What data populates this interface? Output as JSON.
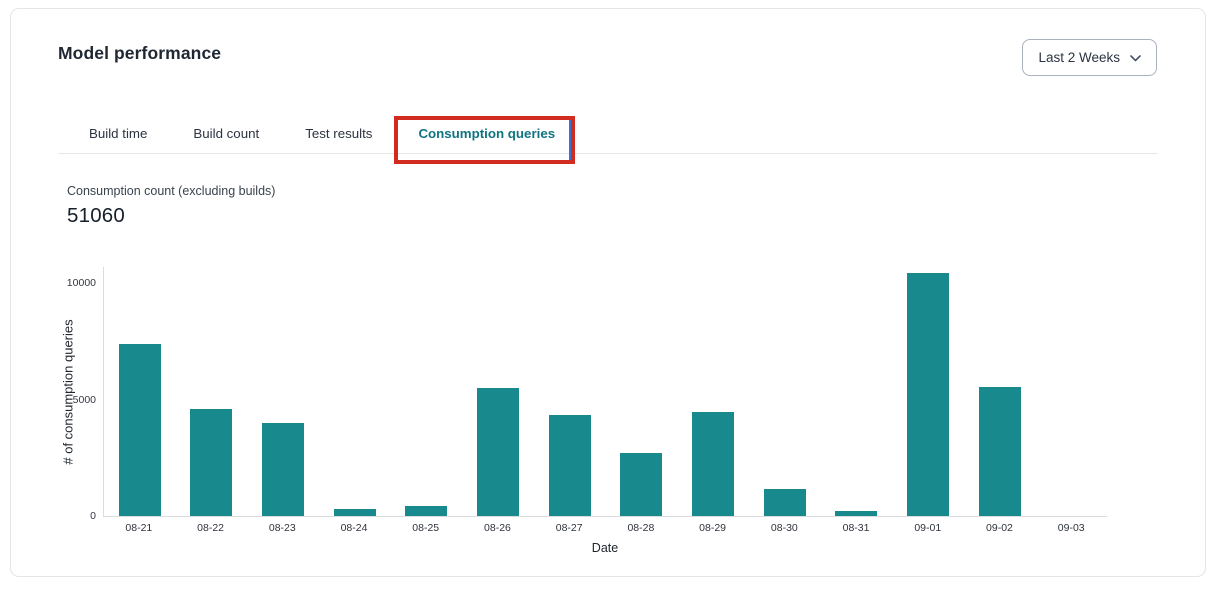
{
  "header": {
    "title": "Model performance",
    "date_range_dropdown": {
      "label": "Last 2 Weeks",
      "icon": "chevron-down"
    }
  },
  "tabs": [
    {
      "label": "Build time",
      "active": false
    },
    {
      "label": "Build count",
      "active": false
    },
    {
      "label": "Test results",
      "active": false
    },
    {
      "label": "Consumption queries",
      "active": true,
      "highlighted": true
    }
  ],
  "annotation": {
    "type": "highlight-box",
    "target": "Consumption queries tab",
    "color": "#d22b1f"
  },
  "metric": {
    "label": "Consumption count (excluding builds)",
    "value": "51060"
  },
  "chart_data": {
    "type": "bar",
    "title": "",
    "xlabel": "Date",
    "ylabel": "# of consumption queries",
    "categories": [
      "08-21",
      "08-22",
      "08-23",
      "08-24",
      "08-25",
      "08-26",
      "08-27",
      "08-28",
      "08-29",
      "08-30",
      "08-31",
      "09-01",
      "09-02",
      "09-03"
    ],
    "values": [
      7400,
      4600,
      4000,
      300,
      450,
      5480,
      4350,
      2700,
      4450,
      1150,
      200,
      10430,
      5550,
      0
    ],
    "yticks": [
      0,
      5000,
      10000
    ],
    "ylim": [
      0,
      10730
    ],
    "grid": false,
    "legend": null,
    "bar_color": "#18898d"
  },
  "colors": {
    "accent_teal": "#0f7480",
    "bar_teal": "#18898d",
    "annotation_red": "#d22b1f",
    "card_border": "#e3e5e9",
    "axis_line": "#d9dce0",
    "text_dark": "#1f2733"
  }
}
